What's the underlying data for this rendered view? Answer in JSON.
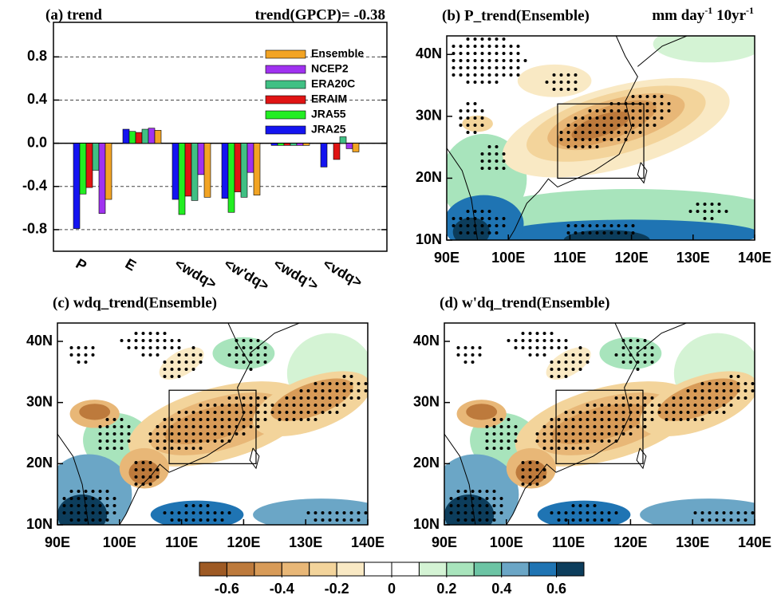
{
  "chart_data": [
    {
      "type": "bar",
      "title": "(a)  trend",
      "annotation": "trend(GPCP)= -0.38",
      "categories": [
        "P",
        "E",
        "<wdq>",
        "<w'dq>",
        "<wdq'>",
        "<vdq>"
      ],
      "series": [
        {
          "name": "JRA25",
          "color": "#1414f0",
          "values": [
            -0.79,
            0.13,
            -0.52,
            -0.51,
            -0.02,
            -0.22
          ]
        },
        {
          "name": "JRA55",
          "color": "#22ee22",
          "values": [
            -0.47,
            0.11,
            -0.66,
            -0.64,
            -0.02,
            0.0
          ]
        },
        {
          "name": "ERAIM",
          "color": "#e01414",
          "values": [
            -0.41,
            0.1,
            -0.49,
            -0.45,
            -0.02,
            -0.15
          ]
        },
        {
          "name": "ERA20C",
          "color": "#40c084",
          "values": [
            -0.25,
            0.13,
            -0.53,
            -0.5,
            -0.02,
            0.06
          ]
        },
        {
          "name": "NCEP2",
          "color": "#a032f0",
          "values": [
            -0.65,
            0.14,
            -0.29,
            -0.27,
            -0.02,
            -0.05
          ]
        },
        {
          "name": "Ensemble",
          "color": "#f2a424",
          "values": [
            -0.52,
            0.12,
            -0.5,
            -0.48,
            -0.02,
            -0.08
          ]
        }
      ],
      "ylim": [
        -1.0,
        1.12
      ],
      "yticks": [
        -0.8,
        -0.4,
        {
          "value": 0,
          "label": "0.0"
        },
        0.4,
        0.8
      ],
      "grid": true,
      "legend": "upper-right"
    },
    {
      "type": "map",
      "title": "(b)  P_trend(Ensemble)",
      "units": [
        "mm day",
        "-1",
        " 10yr",
        "-1"
      ],
      "xlim": [
        90,
        140
      ],
      "ylim": [
        10,
        43
      ],
      "xticks": [
        {
          "value": 90,
          "label": "90E"
        },
        {
          "value": 100,
          "label": "100E"
        },
        {
          "value": 110,
          "label": "110E"
        },
        {
          "value": 120,
          "label": "120E"
        },
        {
          "value": 130,
          "label": "130E"
        },
        {
          "value": 140,
          "label": "140E"
        }
      ],
      "yticks": [
        {
          "value": 10,
          "label": "10N"
        },
        {
          "value": 20,
          "label": "20N"
        },
        {
          "value": 30,
          "label": "30N"
        },
        {
          "value": 40,
          "label": "40N"
        }
      ]
    },
    {
      "type": "map",
      "title": "(c)  wdq_trend(Ensemble)",
      "xlim": [
        90,
        140
      ],
      "ylim": [
        10,
        43
      ],
      "xticks": [
        {
          "value": 90,
          "label": "90E"
        },
        {
          "value": 100,
          "label": "100E"
        },
        {
          "value": 110,
          "label": "110E"
        },
        {
          "value": 120,
          "label": "120E"
        },
        {
          "value": 130,
          "label": "130E"
        },
        {
          "value": 140,
          "label": "140E"
        }
      ],
      "yticks": [
        {
          "value": 10,
          "label": "10N"
        },
        {
          "value": 20,
          "label": "20N"
        },
        {
          "value": 30,
          "label": "30N"
        },
        {
          "value": 40,
          "label": "40N"
        }
      ]
    },
    {
      "type": "map",
      "title": "(d)  w'dq_trend(Ensemble)",
      "xlim": [
        90,
        140
      ],
      "ylim": [
        10,
        43
      ],
      "xticks": [
        {
          "value": 90,
          "label": "90E"
        },
        {
          "value": 100,
          "label": "100E"
        },
        {
          "value": 110,
          "label": "110E"
        },
        {
          "value": 120,
          "label": "120E"
        },
        {
          "value": 130,
          "label": "130E"
        },
        {
          "value": 140,
          "label": "140E"
        }
      ],
      "yticks": [
        {
          "value": 10,
          "label": "10N"
        },
        {
          "value": 20,
          "label": "20N"
        },
        {
          "value": 30,
          "label": "30N"
        },
        {
          "value": 40,
          "label": "40N"
        }
      ]
    },
    {
      "type": "colorbar",
      "lim": [
        -0.7,
        0.7
      ],
      "colors": [
        "#9e5a24",
        "#bd7a3c",
        "#d89b58",
        "#e8b777",
        "#f3d49b",
        "#f9e9c4",
        "#ffffff",
        "#ffffff",
        "#d4f3d4",
        "#a8e4bc",
        "#6cc4a4",
        "#6ba6c6",
        "#1f74b3",
        "#0c3d5c"
      ],
      "ticks": [
        -0.6,
        -0.4,
        -0.2,
        0,
        0.2,
        0.4,
        0.6
      ]
    }
  ]
}
